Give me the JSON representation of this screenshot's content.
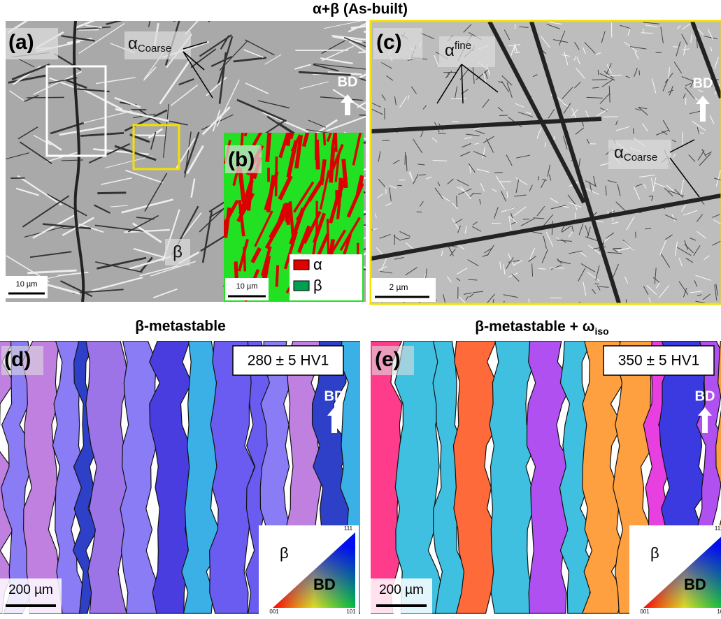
{
  "figure": {
    "title": "α+β (As-built)",
    "panel_a": {
      "label": "(a)",
      "annotation": {
        "symbol": "α",
        "sub": "Coarse"
      },
      "bd": "BD",
      "phase": "β",
      "scale_bar": "10 µm"
    },
    "panel_b": {
      "label": "(b)",
      "scale_bar": "10 µm",
      "legend": [
        {
          "name": "α",
          "color": "#e00000"
        },
        {
          "name": "β",
          "color": "#00a050"
        }
      ]
    },
    "panel_c": {
      "label": "(c)",
      "annotations": [
        {
          "symbol": "α",
          "sub": "fine"
        },
        {
          "symbol": "α",
          "sub": "Coarse"
        }
      ],
      "bd": "BD",
      "scale_bar": "2 µm"
    },
    "panel_d": {
      "heading": "β-metastable",
      "label": "(d)",
      "hardness": "280 ±  5 HV1",
      "bd": "BD",
      "scale_bar": "200 µm",
      "ipf": {
        "phase": "β",
        "direction": "BD",
        "corners": [
          "111",
          "001",
          "101"
        ]
      }
    },
    "panel_e": {
      "heading": {
        "main": "β-metastable + ω",
        "sub": "iso"
      },
      "label": "(e)",
      "hardness": "350 ± 5 HV1",
      "bd": "BD",
      "scale_bar": "200 µm",
      "ipf": {
        "phase": "β",
        "direction": "BD",
        "corners": [
          "111",
          "001",
          "101"
        ]
      }
    }
  }
}
